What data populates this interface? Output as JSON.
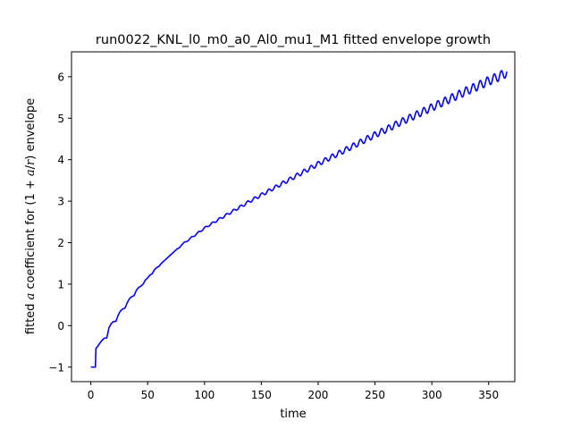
{
  "chart_data": {
    "type": "line",
    "title": "run0022_KNL_l0_m0_a0_Al0_mu1_M1 fitted envelope growth",
    "xlabel": "time",
    "ylabel_parts": {
      "pre": "fitted ",
      "var": "a",
      "mid": " coefficient for (1 + ",
      "frac_num": "a",
      "frac_sep": "/",
      "frac_den": "r",
      "post": ") envelope"
    },
    "xlim": [
      -17,
      373
    ],
    "ylim": [
      -1.35,
      6.6
    ],
    "xticks": [
      0,
      50,
      100,
      150,
      200,
      250,
      300,
      350
    ],
    "yticks": [
      -1,
      0,
      1,
      2,
      3,
      4,
      5,
      6
    ],
    "grid": false,
    "colors": {
      "series": "#0000ff",
      "axes": "#000000",
      "background": "#ffffff"
    },
    "series": [
      {
        "points": [
          [
            0,
            -1.0
          ],
          [
            4,
            -1.0
          ],
          [
            4.5,
            -0.55
          ],
          [
            6,
            -0.5
          ],
          [
            8,
            -0.42
          ],
          [
            10,
            -0.35
          ],
          [
            12,
            -0.3
          ],
          [
            14,
            -0.3
          ],
          [
            16,
            -0.05
          ],
          [
            18,
            0.05
          ],
          [
            20,
            0.1
          ],
          [
            22,
            0.1
          ],
          [
            24,
            0.25
          ],
          [
            26,
            0.35
          ],
          [
            28,
            0.4
          ],
          [
            30,
            0.42
          ],
          [
            32,
            0.55
          ],
          [
            34,
            0.65
          ],
          [
            36,
            0.7
          ],
          [
            38,
            0.72
          ],
          [
            40,
            0.85
          ],
          [
            42,
            0.92
          ],
          [
            44,
            0.95
          ],
          [
            46,
            1.0
          ],
          [
            48,
            1.1
          ],
          [
            50,
            1.15
          ],
          [
            52,
            1.22
          ],
          [
            54,
            1.25
          ],
          [
            56,
            1.35
          ],
          [
            58,
            1.4
          ],
          [
            60,
            1.43
          ],
          [
            62,
            1.5
          ],
          [
            64,
            1.55
          ],
          [
            66,
            1.6
          ],
          [
            68,
            1.65
          ],
          [
            70,
            1.7
          ],
          [
            72,
            1.75
          ],
          [
            74,
            1.8
          ],
          [
            76,
            1.85
          ],
          [
            78,
            1.88
          ],
          [
            80,
            1.95
          ],
          [
            85,
            2.05
          ],
          [
            90,
            2.15
          ],
          [
            95,
            2.25
          ],
          [
            100,
            2.35
          ],
          [
            110,
            2.52
          ],
          [
            120,
            2.68
          ],
          [
            130,
            2.84
          ],
          [
            140,
            3.0
          ],
          [
            150,
            3.15
          ],
          [
            160,
            3.3
          ],
          [
            170,
            3.45
          ],
          [
            180,
            3.6
          ],
          [
            190,
            3.75
          ],
          [
            200,
            3.9
          ],
          [
            210,
            4.04
          ],
          [
            220,
            4.18
          ],
          [
            230,
            4.32
          ],
          [
            240,
            4.46
          ],
          [
            250,
            4.6
          ],
          [
            260,
            4.73
          ],
          [
            270,
            4.87
          ],
          [
            280,
            5.0
          ],
          [
            290,
            5.13
          ],
          [
            300,
            5.26
          ],
          [
            310,
            5.39
          ],
          [
            320,
            5.52
          ],
          [
            330,
            5.65
          ],
          [
            340,
            5.77
          ],
          [
            350,
            5.9
          ],
          [
            360,
            6.02
          ],
          [
            366,
            6.1
          ]
        ]
      }
    ]
  }
}
